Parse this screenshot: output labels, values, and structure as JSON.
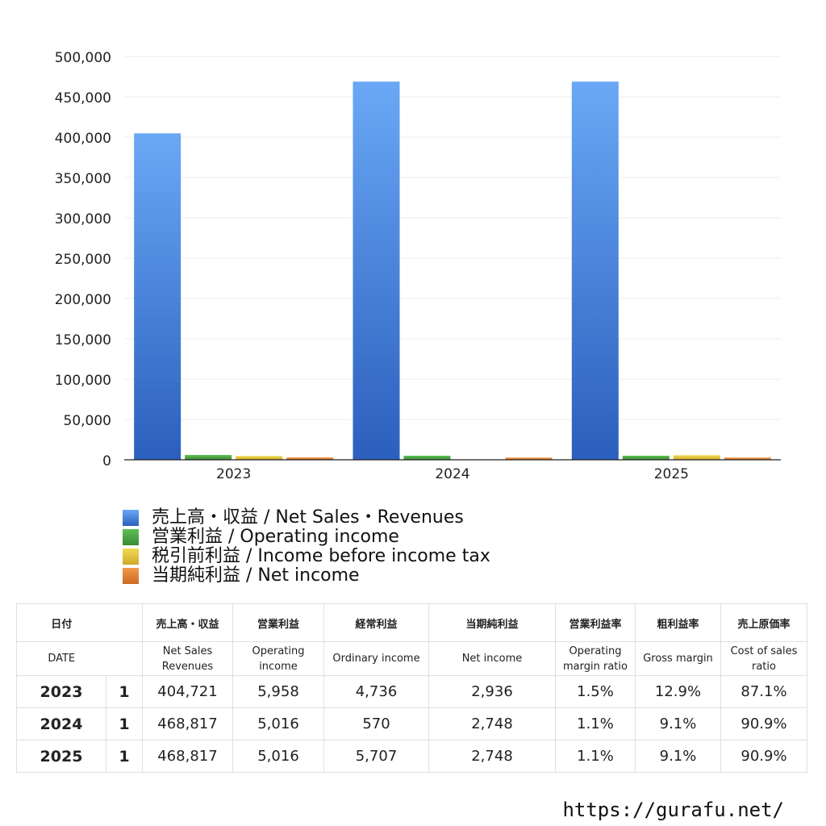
{
  "chart_data": {
    "type": "bar",
    "categories": [
      "2023",
      "2024",
      "2025"
    ],
    "ylim": [
      0,
      500000
    ],
    "yticks": [
      0,
      50000,
      100000,
      150000,
      200000,
      250000,
      300000,
      350000,
      400000,
      450000,
      500000
    ],
    "ytick_labels": [
      "0",
      "50,000",
      "100,000",
      "150,000",
      "200,000",
      "250,000",
      "300,000",
      "350,000",
      "400,000",
      "450,000",
      "500,000"
    ],
    "grid": true,
    "legend_position": "bottom",
    "series": [
      {
        "name": "売上高・収益 / Net Sales・Revenues",
        "color": "#4a86e0",
        "values": [
          404721,
          468817,
          468817
        ]
      },
      {
        "name": "営業利益 / Operating income",
        "color": "#4fa34a",
        "values": [
          5958,
          5016,
          5016
        ]
      },
      {
        "name": "税引前利益 / Income before income tax",
        "color": "#e4cc3a",
        "values": [
          4736,
          570,
          5707
        ]
      },
      {
        "name": "当期純利益 / Net income",
        "color": "#e0873a",
        "values": [
          2936,
          2748,
          2748
        ]
      }
    ]
  },
  "table": {
    "header_jp": [
      "日付",
      "",
      "売上高・収益",
      "営業利益",
      "経常利益",
      "当期純利益",
      "営業利益率",
      "粗利益率",
      "売上原価率"
    ],
    "header_en": [
      "DATE",
      "",
      "Net Sales Revenues",
      "Operating income",
      "Ordinary income",
      "Net income",
      "Operating margin ratio",
      "Gross margin",
      "Cost of sales ratio"
    ],
    "rows": [
      [
        "2023",
        "1",
        "404,721",
        "5,958",
        "4,736",
        "2,936",
        "1.5%",
        "12.9%",
        "87.1%"
      ],
      [
        "2024",
        "1",
        "468,817",
        "5,016",
        "570",
        "2,748",
        "1.1%",
        "9.1%",
        "90.9%"
      ],
      [
        "2025",
        "1",
        "468,817",
        "5,016",
        "5,707",
        "2,748",
        "1.1%",
        "9.1%",
        "90.9%"
      ]
    ]
  },
  "footer": {
    "site": "https://gurafu.net/"
  }
}
